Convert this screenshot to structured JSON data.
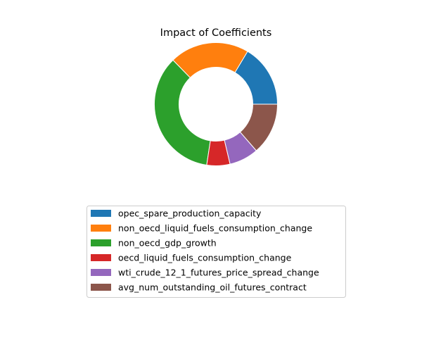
{
  "chart_data": {
    "type": "pie",
    "style": "donut",
    "title": "Impact of Coefficients",
    "categories": [
      "opec_spare_production_capacity",
      "non_oecd_liquid_fuels_consumption_change",
      "non_oecd_gdp_growth",
      "oecd_liquid_fuels_consumption_change",
      "wti_crude_12_1_futures_price_spread_change",
      "avg_num_outstanding_oil_futures_contract"
    ],
    "values": [
      16.4,
      20.9,
      35.3,
      6.1,
      7.7,
      13.6
    ],
    "colors": [
      "#1f77b4",
      "#ff7f0e",
      "#2ca02c",
      "#d62728",
      "#9467bd",
      "#8c564b"
    ],
    "legend_position": "bottom-center"
  }
}
